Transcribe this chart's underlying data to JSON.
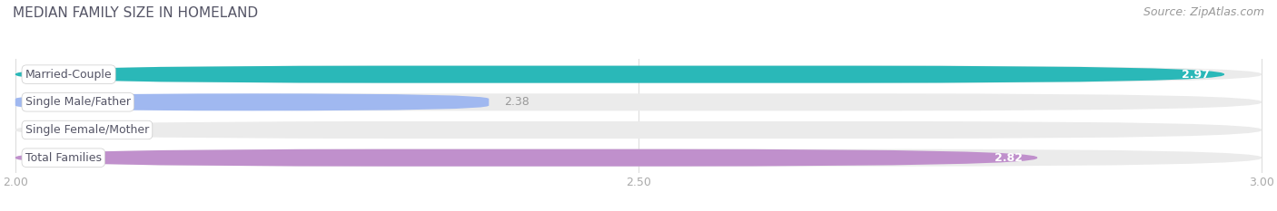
{
  "title": "MEDIAN FAMILY SIZE IN HOMELAND",
  "source": "Source: ZipAtlas.com",
  "categories": [
    "Married-Couple",
    "Single Male/Father",
    "Single Female/Mother",
    "Total Families"
  ],
  "values": [
    2.97,
    2.38,
    2.0,
    2.82
  ],
  "bar_colors": [
    "#2ab8b8",
    "#a0b8f0",
    "#f5a0b5",
    "#c090cc"
  ],
  "xlim": [
    2.0,
    3.0
  ],
  "xticks": [
    2.0,
    2.5,
    3.0
  ],
  "xtick_labels": [
    "2.00",
    "2.50",
    "3.00"
  ],
  "bar_height": 0.62,
  "value_label_inside": [
    true,
    false,
    false,
    true
  ],
  "value_label_color_inside": "#ffffff",
  "value_label_color_outside": "#999999",
  "background_color": "#ffffff",
  "bar_background_color": "#ebebeb",
  "title_fontsize": 11,
  "source_fontsize": 9,
  "label_fontsize": 9,
  "value_fontsize": 9,
  "title_color": "#555566",
  "label_text_color": "#555566",
  "grid_color": "#dddddd",
  "tick_color": "#aaaaaa"
}
